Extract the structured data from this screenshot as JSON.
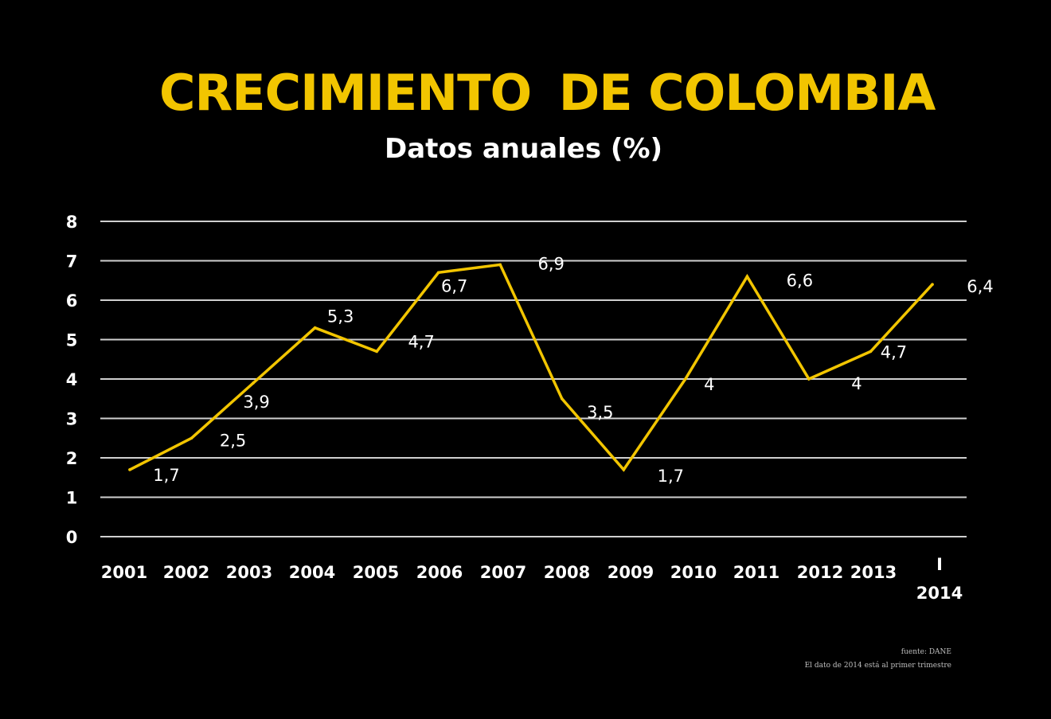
{
  "colors": {
    "background": "#000000",
    "accent": "#f2c500",
    "text": "#ffffff",
    "grid": "#cfcfcf"
  },
  "title": {
    "part1": "CRECIMIENTO",
    "part2": "DE COLOMBIA"
  },
  "subtitle": "Datos anuales (%)",
  "footer": {
    "source": "fuente: DANE",
    "note": "El dato de 2014 está al primer trimestre"
  },
  "chart_data": {
    "type": "line",
    "title": "CRECIMIENTO DE COLOMBIA",
    "subtitle": "Datos anuales (%)",
    "categories": [
      "2001",
      "2002",
      "2003",
      "2004",
      "2005",
      "2006",
      "2007",
      "2008",
      "2009",
      "2010",
      "2011",
      "2012",
      "2013",
      "I 2014"
    ],
    "x_tick_labels": [
      [
        "2001"
      ],
      [
        "2002"
      ],
      [
        "2003"
      ],
      [
        "2004"
      ],
      [
        "2005"
      ],
      [
        "2006"
      ],
      [
        "2007"
      ],
      [
        "2008"
      ],
      [
        "2009"
      ],
      [
        "2010"
      ],
      [
        "2011"
      ],
      [
        "2012"
      ],
      [
        "2013"
      ],
      [
        "I",
        "2014"
      ]
    ],
    "series": [
      {
        "values": [
          1.7,
          2.5,
          3.9,
          5.3,
          4.7,
          6.7,
          6.9,
          3.5,
          1.7,
          4.0,
          6.6,
          4.0,
          4.7,
          6.4
        ]
      }
    ],
    "data_labels": [
      "1,7",
      "2,5",
      "3,9",
      "5,3",
      "4,7",
      "6,7",
      "6,9",
      "3,5",
      "1,7",
      "4",
      "6,6",
      "4",
      "4,7",
      "6,4"
    ],
    "y_ticks": [
      "0",
      "1",
      "2",
      "3",
      "4",
      "5",
      "6",
      "7",
      "8"
    ],
    "ylim": [
      0,
      8
    ],
    "grid": true,
    "legend": "none"
  }
}
